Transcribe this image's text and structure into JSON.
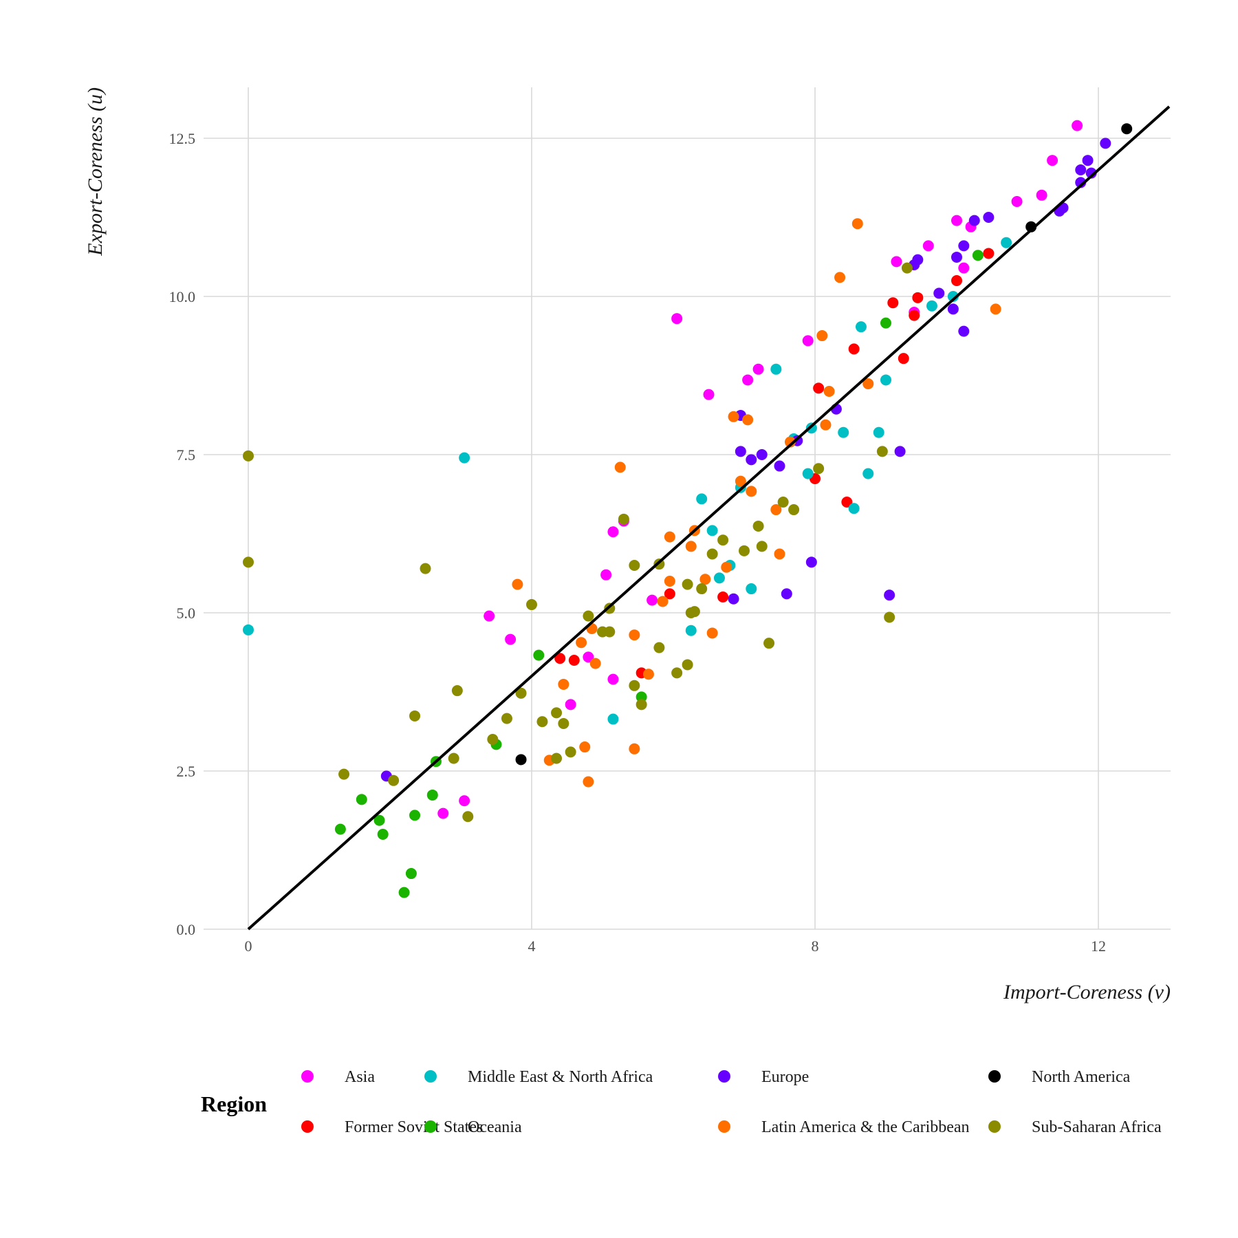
{
  "chart_data": {
    "type": "scatter",
    "title": "",
    "xlabel": "Import-Coreness (v)",
    "ylabel": "Export-Coreness (u)",
    "xlim": [
      -0.6,
      13.0
    ],
    "ylim": [
      0,
      13.3
    ],
    "x_ticks": [
      0,
      4,
      8,
      12
    ],
    "x_tick_labels": [
      "0",
      "4",
      "8",
      "12"
    ],
    "y_ticks": [
      0,
      2.5,
      5,
      7.5,
      10,
      12.5
    ],
    "y_tick_labels": [
      "0.0",
      "2.5",
      "5.0",
      "7.5",
      "10.0",
      "12.5"
    ],
    "grid": true,
    "reference_line": {
      "slope": 1,
      "intercept": 0,
      "color": "#000000"
    },
    "legend": {
      "title": "Region",
      "placement": "bottom"
    },
    "series": [
      {
        "name": "Asia",
        "color": "#FF00FF",
        "points": [
          [
            3.4,
            4.95
          ],
          [
            3.7,
            4.58
          ],
          [
            2.75,
            1.83
          ],
          [
            3.05,
            2.03
          ],
          [
            4.8,
            4.3
          ],
          [
            4.55,
            3.55
          ],
          [
            5.05,
            5.6
          ],
          [
            5.15,
            6.28
          ],
          [
            5.3,
            6.45
          ],
          [
            5.15,
            3.95
          ],
          [
            5.7,
            5.2
          ],
          [
            6.05,
            9.65
          ],
          [
            6.5,
            8.45
          ],
          [
            7.05,
            8.68
          ],
          [
            7.2,
            8.85
          ],
          [
            7.9,
            9.3
          ],
          [
            9.15,
            10.55
          ],
          [
            9.4,
            9.75
          ],
          [
            9.6,
            10.8
          ],
          [
            10.0,
            11.2
          ],
          [
            10.1,
            10.45
          ],
          [
            10.2,
            11.1
          ],
          [
            10.85,
            11.5
          ],
          [
            11.2,
            11.6
          ],
          [
            11.35,
            12.15
          ],
          [
            11.7,
            12.7
          ]
        ]
      },
      {
        "name": "Former Soviet States",
        "color": "#FF0000",
        "points": [
          [
            4.4,
            4.28
          ],
          [
            4.6,
            4.25
          ],
          [
            5.55,
            4.05
          ],
          [
            5.95,
            5.3
          ],
          [
            6.7,
            5.25
          ],
          [
            8.0,
            7.12
          ],
          [
            8.05,
            8.55
          ],
          [
            8.45,
            6.75
          ],
          [
            8.55,
            9.17
          ],
          [
            9.1,
            9.9
          ],
          [
            9.25,
            9.02
          ],
          [
            9.4,
            9.7
          ],
          [
            9.45,
            9.98
          ],
          [
            10.0,
            10.25
          ],
          [
            10.45,
            10.68
          ]
        ]
      },
      {
        "name": "Middle East & North Africa",
        "color": "#00BFC4",
        "points": [
          [
            0,
            4.73
          ],
          [
            3.05,
            7.45
          ],
          [
            5.15,
            3.32
          ],
          [
            6.25,
            4.72
          ],
          [
            6.4,
            6.8
          ],
          [
            6.55,
            6.3
          ],
          [
            6.65,
            5.55
          ],
          [
            6.8,
            5.75
          ],
          [
            6.95,
            6.98
          ],
          [
            7.1,
            5.38
          ],
          [
            7.45,
            8.85
          ],
          [
            7.7,
            7.75
          ],
          [
            7.9,
            7.2
          ],
          [
            7.95,
            7.92
          ],
          [
            8.4,
            7.85
          ],
          [
            8.55,
            6.65
          ],
          [
            8.65,
            9.52
          ],
          [
            8.75,
            7.2
          ],
          [
            8.9,
            7.85
          ],
          [
            9.0,
            8.68
          ],
          [
            9.65,
            9.85
          ],
          [
            9.95,
            10.0
          ],
          [
            10.7,
            10.85
          ]
        ]
      },
      {
        "name": "Oceania",
        "color": "#1AB300",
        "points": [
          [
            1.3,
            1.58
          ],
          [
            1.6,
            2.05
          ],
          [
            1.85,
            1.72
          ],
          [
            1.9,
            1.5
          ],
          [
            2.2,
            0.58
          ],
          [
            2.3,
            0.88
          ],
          [
            2.35,
            1.8
          ],
          [
            2.6,
            2.12
          ],
          [
            2.65,
            2.65
          ],
          [
            3.5,
            2.92
          ],
          [
            4.1,
            4.33
          ],
          [
            5.55,
            3.67
          ],
          [
            9.0,
            9.58
          ],
          [
            10.3,
            10.65
          ]
        ]
      },
      {
        "name": "Europe",
        "color": "#6600FF",
        "points": [
          [
            1.95,
            2.42
          ],
          [
            6.85,
            5.22
          ],
          [
            6.95,
            8.12
          ],
          [
            6.95,
            7.55
          ],
          [
            7.1,
            7.42
          ],
          [
            7.25,
            7.5
          ],
          [
            7.5,
            7.32
          ],
          [
            7.6,
            5.3
          ],
          [
            7.75,
            7.72
          ],
          [
            7.95,
            5.8
          ],
          [
            8.3,
            8.22
          ],
          [
            9.05,
            5.28
          ],
          [
            9.2,
            7.55
          ],
          [
            9.4,
            10.5
          ],
          [
            9.45,
            10.58
          ],
          [
            9.75,
            10.05
          ],
          [
            9.95,
            9.8
          ],
          [
            10.0,
            10.62
          ],
          [
            10.1,
            10.8
          ],
          [
            10.1,
            9.45
          ],
          [
            10.25,
            11.2
          ],
          [
            10.45,
            11.25
          ],
          [
            11.45,
            11.35
          ],
          [
            11.5,
            11.4
          ],
          [
            11.75,
            11.8
          ],
          [
            11.75,
            12.0
          ],
          [
            11.85,
            12.15
          ],
          [
            11.9,
            11.95
          ],
          [
            12.1,
            12.42
          ]
        ]
      },
      {
        "name": "Latin America & the Caribbean",
        "color": "#FF6F00",
        "points": [
          [
            3.8,
            5.45
          ],
          [
            4.25,
            2.67
          ],
          [
            4.45,
            3.87
          ],
          [
            4.7,
            4.53
          ],
          [
            4.75,
            2.88
          ],
          [
            4.8,
            2.33
          ],
          [
            4.85,
            4.75
          ],
          [
            4.9,
            4.2
          ],
          [
            5.25,
            7.3
          ],
          [
            5.45,
            2.85
          ],
          [
            5.45,
            4.65
          ],
          [
            5.65,
            4.03
          ],
          [
            5.85,
            5.18
          ],
          [
            5.95,
            5.5
          ],
          [
            5.95,
            6.2
          ],
          [
            6.25,
            6.05
          ],
          [
            6.3,
            6.3
          ],
          [
            6.45,
            5.53
          ],
          [
            6.55,
            4.68
          ],
          [
            6.75,
            5.72
          ],
          [
            6.85,
            8.1
          ],
          [
            6.95,
            7.08
          ],
          [
            7.05,
            8.05
          ],
          [
            7.1,
            6.92
          ],
          [
            7.45,
            6.63
          ],
          [
            7.5,
            5.93
          ],
          [
            7.65,
            7.7
          ],
          [
            8.1,
            9.38
          ],
          [
            8.15,
            7.97
          ],
          [
            8.2,
            8.5
          ],
          [
            8.35,
            10.3
          ],
          [
            8.6,
            11.15
          ],
          [
            8.75,
            8.62
          ],
          [
            10.55,
            9.8
          ]
        ]
      },
      {
        "name": "North America",
        "color": "#000000",
        "points": [
          [
            3.85,
            2.68
          ],
          [
            11.05,
            11.1
          ],
          [
            12.4,
            12.65
          ]
        ]
      },
      {
        "name": "Sub-Saharan Africa",
        "color": "#8B8B00",
        "points": [
          [
            0,
            7.48
          ],
          [
            0,
            5.8
          ],
          [
            1.35,
            2.45
          ],
          [
            2.05,
            2.35
          ],
          [
            2.35,
            3.37
          ],
          [
            2.5,
            5.7
          ],
          [
            2.9,
            2.7
          ],
          [
            2.95,
            3.77
          ],
          [
            3.1,
            1.78
          ],
          [
            3.45,
            3.0
          ],
          [
            3.65,
            3.33
          ],
          [
            3.85,
            3.73
          ],
          [
            4.0,
            5.13
          ],
          [
            4.15,
            3.28
          ],
          [
            4.35,
            3.42
          ],
          [
            4.35,
            2.7
          ],
          [
            4.45,
            3.25
          ],
          [
            4.55,
            2.8
          ],
          [
            4.8,
            4.95
          ],
          [
            5.0,
            4.7
          ],
          [
            5.1,
            4.7
          ],
          [
            5.1,
            5.07
          ],
          [
            5.3,
            6.48
          ],
          [
            5.45,
            5.75
          ],
          [
            5.45,
            3.85
          ],
          [
            5.55,
            3.55
          ],
          [
            5.8,
            4.45
          ],
          [
            5.8,
            5.77
          ],
          [
            6.05,
            4.05
          ],
          [
            6.2,
            4.18
          ],
          [
            6.2,
            5.45
          ],
          [
            6.25,
            5.0
          ],
          [
            6.3,
            5.02
          ],
          [
            6.4,
            5.38
          ],
          [
            6.55,
            5.93
          ],
          [
            6.7,
            6.15
          ],
          [
            7.0,
            5.98
          ],
          [
            7.2,
            6.37
          ],
          [
            7.25,
            6.05
          ],
          [
            7.35,
            4.52
          ],
          [
            7.55,
            6.75
          ],
          [
            7.7,
            6.63
          ],
          [
            8.05,
            7.28
          ],
          [
            8.95,
            7.55
          ],
          [
            9.05,
            4.93
          ],
          [
            9.3,
            10.45
          ]
        ]
      }
    ]
  }
}
